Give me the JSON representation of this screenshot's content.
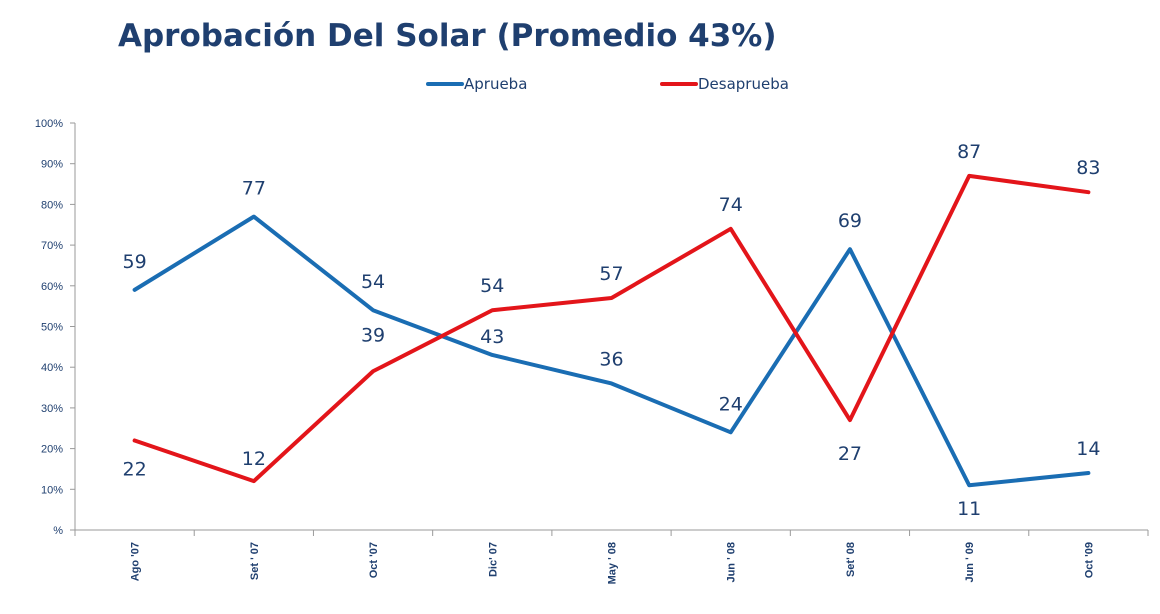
{
  "chart_data": {
    "type": "line",
    "title": "Aprobación Del Solar (Promedio 43%)",
    "categories": [
      "Ago '07",
      "Set ' 07",
      "Oct '07",
      "Dic' 07",
      "May ' 08",
      "Jun ' 08",
      "Set' 08",
      "Jun ' 09",
      "Oct '09"
    ],
    "series": [
      {
        "name": "Aprueba",
        "color": "#1a6db3",
        "values": [
          59,
          77,
          54,
          43,
          36,
          24,
          69,
          11,
          14
        ]
      },
      {
        "name": "Desaprueba",
        "color": "#e3151a",
        "values": [
          22,
          12,
          39,
          54,
          57,
          74,
          27,
          87,
          83
        ]
      }
    ],
    "ylim": [
      0,
      100
    ],
    "yticks": [
      "%",
      "10%",
      "20%",
      "30%",
      "40%",
      "50%",
      "60%",
      "70%",
      "80%",
      "90%",
      "100%"
    ],
    "xlabel": "",
    "ylabel": "",
    "legend": "top-center"
  }
}
